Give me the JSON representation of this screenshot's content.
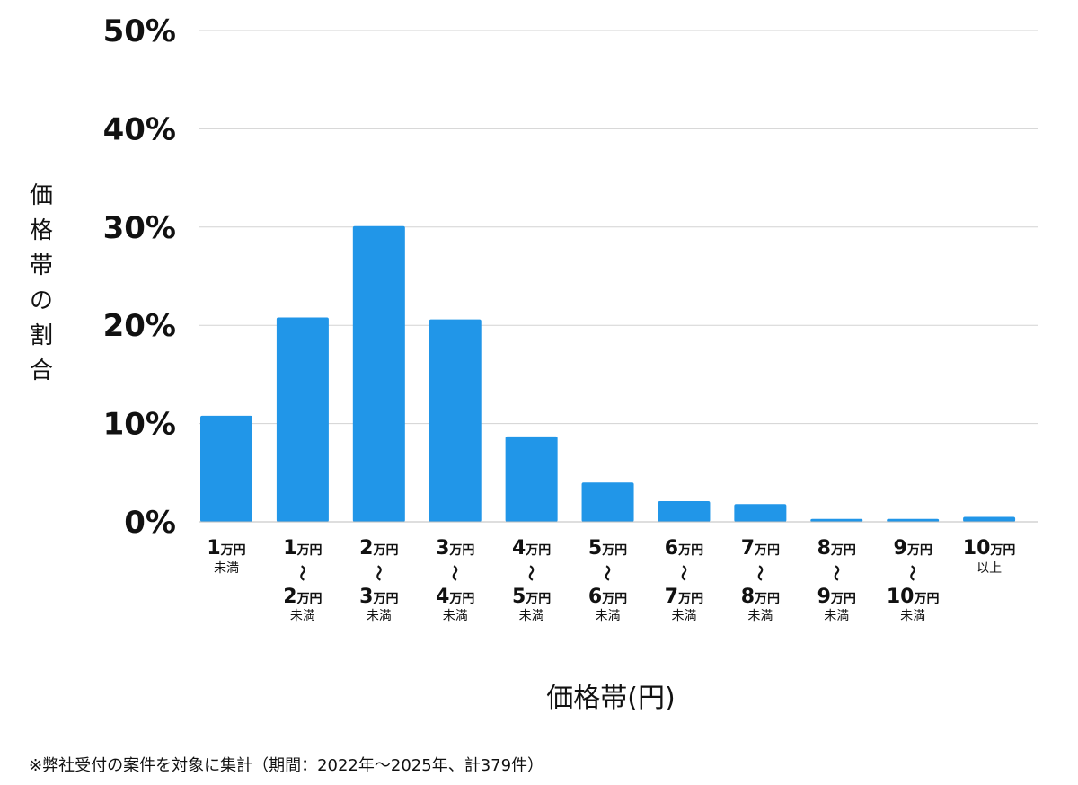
{
  "chart_data": {
    "type": "bar",
    "categories": [
      {
        "lines": [
          {
            "num": "1",
            "unit": "万円"
          }
        ],
        "suffix": "未満"
      },
      {
        "lines": [
          {
            "num": "1",
            "unit": "万円"
          },
          {
            "num": "2",
            "unit": "万円"
          }
        ],
        "suffix": "未満"
      },
      {
        "lines": [
          {
            "num": "2",
            "unit": "万円"
          },
          {
            "num": "3",
            "unit": "万円"
          }
        ],
        "suffix": "未満"
      },
      {
        "lines": [
          {
            "num": "3",
            "unit": "万円"
          },
          {
            "num": "4",
            "unit": "万円"
          }
        ],
        "suffix": "未満"
      },
      {
        "lines": [
          {
            "num": "4",
            "unit": "万円"
          },
          {
            "num": "5",
            "unit": "万円"
          }
        ],
        "suffix": "未満"
      },
      {
        "lines": [
          {
            "num": "5",
            "unit": "万円"
          },
          {
            "num": "6",
            "unit": "万円"
          }
        ],
        "suffix": "未満"
      },
      {
        "lines": [
          {
            "num": "6",
            "unit": "万円"
          },
          {
            "num": "7",
            "unit": "万円"
          }
        ],
        "suffix": "未満"
      },
      {
        "lines": [
          {
            "num": "7",
            "unit": "万円"
          },
          {
            "num": "8",
            "unit": "万円"
          }
        ],
        "suffix": "未満"
      },
      {
        "lines": [
          {
            "num": "8",
            "unit": "万円"
          },
          {
            "num": "9",
            "unit": "万円"
          }
        ],
        "suffix": "未満"
      },
      {
        "lines": [
          {
            "num": "9",
            "unit": "万円"
          },
          {
            "num": "10",
            "unit": "万円"
          }
        ],
        "suffix": "未満"
      },
      {
        "lines": [
          {
            "num": "10",
            "unit": "万円"
          }
        ],
        "suffix": "以上"
      }
    ],
    "values": [
      10.8,
      20.8,
      30.1,
      20.6,
      8.7,
      4.0,
      2.1,
      1.8,
      0.3,
      0.3,
      0.5
    ],
    "ylim": [
      0,
      50
    ],
    "yticks": [
      "0%",
      "10%",
      "20%",
      "30%",
      "40%",
      "50%"
    ],
    "ytick_values": [
      0,
      10,
      20,
      30,
      40,
      50
    ],
    "range_separator": "〜",
    "xlabel": "価格帯(円)",
    "ylabel": "価格帯の割合",
    "grid": true,
    "bar_color": "#2196e8",
    "grid_color": "#d3d3d3"
  },
  "footnote": "※弊社受付の案件を対象に集計（期間：2022年〜2025年、計379件）"
}
